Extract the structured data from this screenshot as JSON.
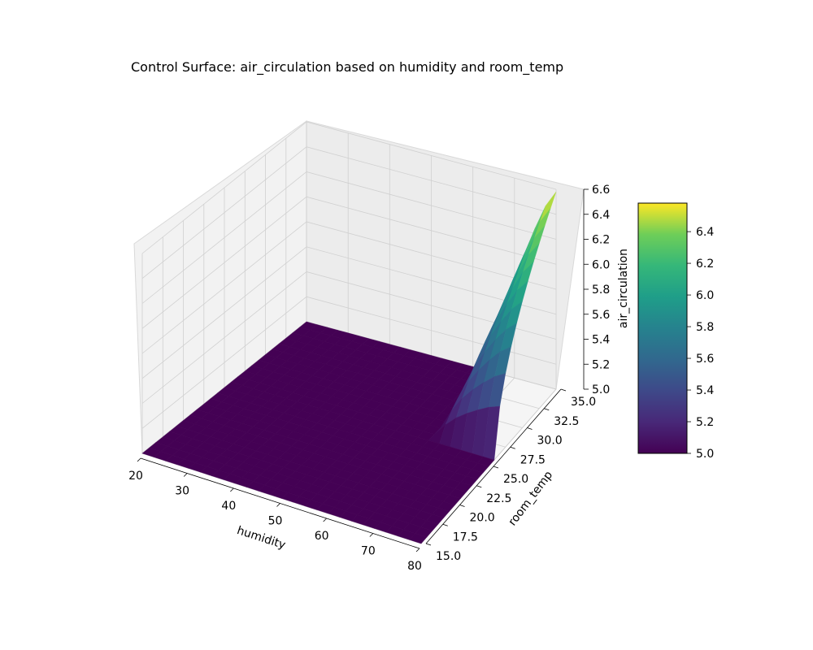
{
  "chart_data": {
    "type": "surface",
    "title": "Control Surface: air_circulation based on humidity and room_temp",
    "xlabel": "humidity",
    "ylabel": "room_temp",
    "zlabel": "air_circulation",
    "xlim": [
      20,
      80
    ],
    "ylim": [
      15,
      35
    ],
    "zlim": [
      5.0,
      6.6
    ],
    "xticks": [
      "20",
      "30",
      "40",
      "50",
      "60",
      "70",
      "80"
    ],
    "yticks": [
      "15.0",
      "17.5",
      "20.0",
      "22.5",
      "25.0",
      "27.5",
      "30.0",
      "32.5",
      "35.0"
    ],
    "zticks": [
      "5.0",
      "5.2",
      "5.4",
      "5.6",
      "5.8",
      "6.0",
      "6.2",
      "6.4",
      "6.6"
    ],
    "colormap": "viridis",
    "colorbar": {
      "range": [
        5.0,
        6.58
      ],
      "ticks": [
        "5.0",
        "5.2",
        "5.4",
        "5.6",
        "5.8",
        "6.0",
        "6.2",
        "6.4"
      ]
    },
    "surface": {
      "description_x": "humidity grid from 20 to 80",
      "description_y": "room_temp grid from 15 to 35",
      "base_value": 5.0,
      "ramp_humidity_start": 66,
      "ramp_temp_start": 26,
      "peak_value": 6.58
    }
  }
}
